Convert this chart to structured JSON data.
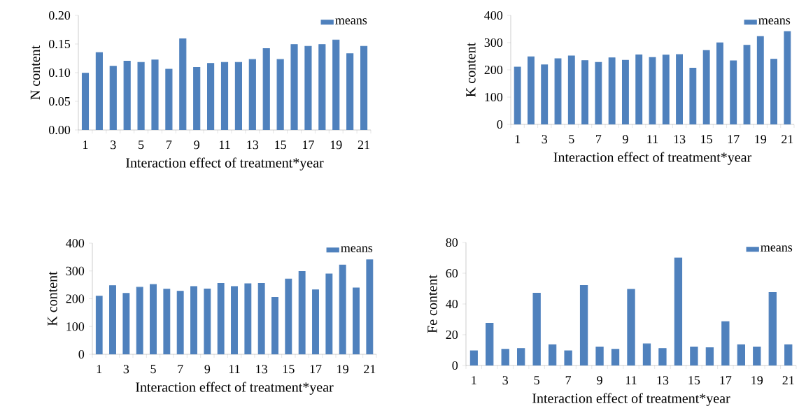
{
  "chart_data": [
    {
      "type": "bar",
      "xlabel": "Interaction effect of treatment*year",
      "ylabel": "N content",
      "categories": [
        "1",
        null,
        "3",
        null,
        "5",
        null,
        "7",
        null,
        "9",
        null,
        "11",
        null,
        "13",
        null,
        "15",
        null,
        "17",
        null,
        "19",
        null,
        "21"
      ],
      "series": [
        {
          "name": "means",
          "color": "#4f81bd",
          "values": [
            0.099,
            0.135,
            0.111,
            0.12,
            0.118,
            0.122,
            0.106,
            0.159,
            0.109,
            0.116,
            0.118,
            0.118,
            0.123,
            0.142,
            0.123,
            0.149,
            0.146,
            0.149,
            0.157,
            0.133,
            0.146
          ]
        }
      ],
      "ylim": [
        0,
        0.2
      ],
      "yticks": [
        {
          "value": 0,
          "label": "0.00"
        },
        {
          "value": 0.05,
          "label": "0.05"
        },
        {
          "value": 0.1,
          "label": "0.10"
        },
        {
          "value": 0.15,
          "label": "0.15"
        },
        {
          "value": 0.2,
          "label": "0.20"
        }
      ],
      "legend": "top right"
    },
    {
      "type": "bar",
      "xlabel": "Interaction effect of treatment*year",
      "ylabel": "K content",
      "categories": [
        "1",
        null,
        "3",
        null,
        "5",
        null,
        "7",
        null,
        "9",
        null,
        "11",
        null,
        "13",
        null,
        "15",
        null,
        "17",
        null,
        "19",
        null,
        "21"
      ],
      "series": [
        {
          "name": "means",
          "color": "#4f81bd",
          "values": [
            210,
            248,
            218,
            241,
            251,
            234,
            227,
            244,
            235,
            255,
            245,
            254,
            256,
            206,
            271,
            299,
            233,
            290,
            322,
            239,
            341
          ]
        }
      ],
      "ylim": [
        0,
        400
      ],
      "yticks": [
        0,
        100,
        200,
        300,
        400
      ],
      "legend": "top right"
    },
    {
      "type": "bar",
      "xlabel": "Interaction effect of treatment*year",
      "ylabel": "K content",
      "categories": [
        "1",
        null,
        "3",
        null,
        "5",
        null,
        "7",
        null,
        "9",
        null,
        "11",
        null,
        "13",
        null,
        "15",
        null,
        "17",
        null,
        "19",
        null,
        "21"
      ],
      "series": [
        {
          "name": "means",
          "color": "#4f81bd",
          "values": [
            209,
            247,
            219,
            241,
            251,
            234,
            227,
            244,
            235,
            255,
            244,
            254,
            255,
            205,
            271,
            298,
            232,
            289,
            321,
            239,
            340
          ]
        }
      ],
      "ylim": [
        0,
        400
      ],
      "yticks": [
        0,
        100,
        200,
        300,
        400
      ],
      "legend": "top right"
    },
    {
      "type": "bar",
      "xlabel": "Interaction effect of treatment*year",
      "ylabel": "Fe content",
      "categories": [
        "1",
        null,
        "3",
        null,
        "5",
        null,
        "7",
        null,
        "9",
        null,
        "11",
        null,
        "13",
        null,
        "15",
        null,
        "17",
        null,
        "19",
        null,
        "21"
      ],
      "series": [
        {
          "name": "means",
          "color": "#4f81bd",
          "values": [
            9.5,
            27.5,
            10.5,
            11,
            47,
            13.5,
            9.5,
            52,
            12,
            10.5,
            49.5,
            14,
            11,
            70,
            12,
            11.5,
            28.5,
            13.5,
            12,
            47.5,
            13.5
          ]
        }
      ],
      "ylim": [
        0,
        80
      ],
      "yticks": [
        0,
        20,
        40,
        60,
        80
      ],
      "legend": "top right"
    }
  ]
}
